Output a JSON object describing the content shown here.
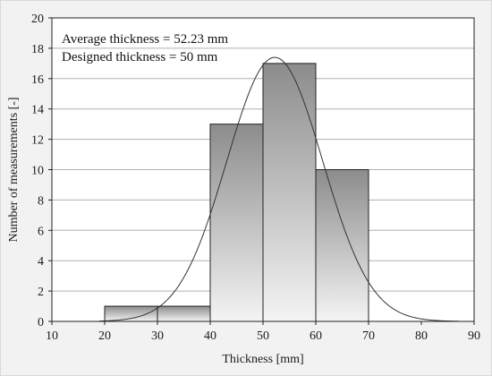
{
  "chart_data": {
    "type": "bar",
    "subtype": "histogram",
    "title": "",
    "xlabel": "Thickness [mm]",
    "ylabel": "Number of measurements [-]",
    "xlim": [
      10,
      90
    ],
    "ylim": [
      0,
      20
    ],
    "xticks": [
      10,
      20,
      30,
      40,
      50,
      60,
      70,
      80,
      90
    ],
    "yticks": [
      0,
      2,
      4,
      6,
      8,
      10,
      12,
      14,
      16,
      18,
      20
    ],
    "grid": "horizontal",
    "bins": [
      {
        "x0": 20,
        "x1": 30,
        "count": 1
      },
      {
        "x0": 30,
        "x1": 40,
        "count": 1
      },
      {
        "x0": 40,
        "x1": 50,
        "count": 13
      },
      {
        "x0": 50,
        "x1": 60,
        "count": 17
      },
      {
        "x0": 60,
        "x1": 70,
        "count": 10
      }
    ],
    "fit_curve": {
      "type": "normal",
      "mean": 52.23,
      "sd": 9.1,
      "peak_value": 17.4,
      "x_range": [
        19,
        87
      ]
    },
    "annotations": [
      "Average thickness = 52.23 mm",
      "Designed thickness = 50 mm"
    ],
    "colors": {
      "plot_background": "#ffffff",
      "frame_background": "#f2f2f2",
      "bar_fill_top": "#8c8c8c",
      "bar_fill_bottom": "#f4f4f4",
      "bar_stroke": "#222222",
      "grid": "#b0b0b0",
      "curve": "#333333"
    }
  }
}
